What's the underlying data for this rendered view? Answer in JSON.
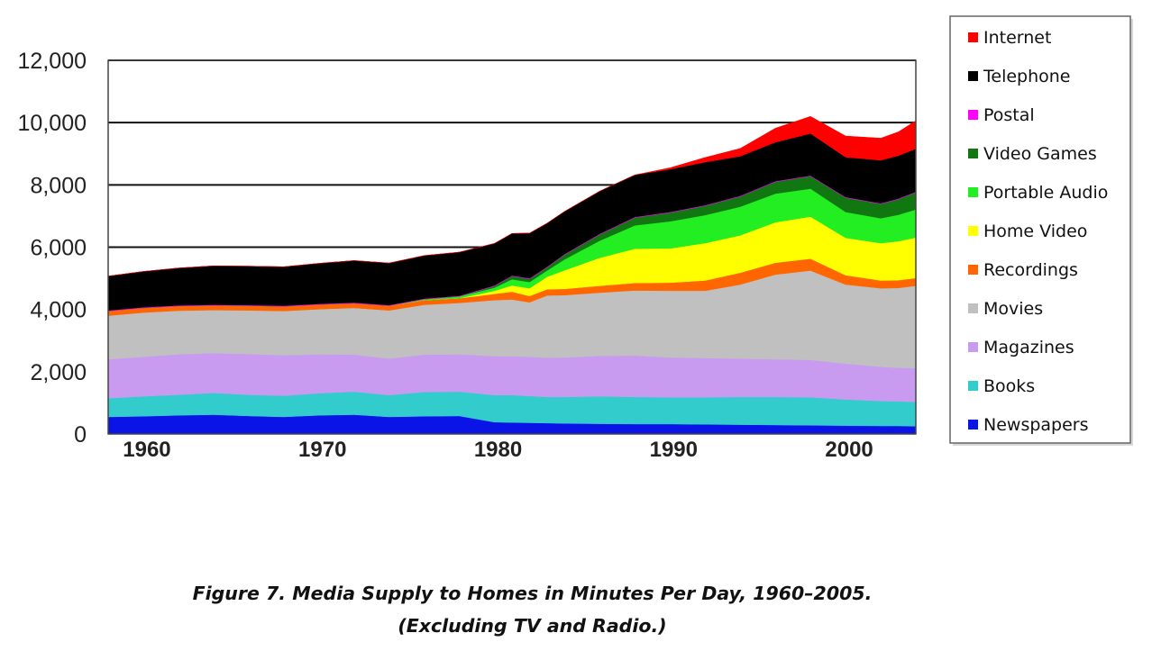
{
  "chart_data": {
    "type": "area",
    "stacked": true,
    "x": [
      1958,
      1960,
      1962,
      1964,
      1966,
      1968,
      1970,
      1972,
      1974,
      1976,
      1978,
      1980,
      1981,
      1982,
      1983,
      1984,
      1986,
      1988,
      1990,
      1992,
      1994,
      1996,
      1998,
      2000,
      2002,
      2003,
      2004
    ],
    "ylim": [
      0,
      12000
    ],
    "xlim": [
      1958,
      2004
    ],
    "yticks": [
      0,
      2000,
      4000,
      6000,
      8000,
      10000,
      12000
    ],
    "ytick_labels": [
      "0",
      "2,000",
      "4,000",
      "6,000",
      "8,000",
      "10,000",
      "12,000"
    ],
    "xticks": [
      1960,
      1970,
      1980,
      1990,
      2000
    ],
    "xtick_labels": [
      "1960",
      "1970",
      "1980",
      "1990",
      "2000"
    ],
    "grid": "horizontal",
    "legend_position": "right",
    "series": [
      {
        "name": "Newspapers",
        "color": "#0a14e6",
        "values": [
          550,
          570,
          600,
          620,
          580,
          550,
          600,
          620,
          550,
          570,
          580,
          380,
          370,
          360,
          350,
          340,
          330,
          320,
          320,
          310,
          300,
          290,
          280,
          270,
          260,
          260,
          250
        ]
      },
      {
        "name": "Books",
        "color": "#33cccc",
        "values": [
          600,
          640,
          660,
          700,
          680,
          680,
          710,
          740,
          700,
          780,
          780,
          870,
          880,
          860,
          840,
          850,
          880,
          870,
          860,
          870,
          890,
          900,
          900,
          840,
          800,
          790,
          780
        ]
      },
      {
        "name": "Magazines",
        "color": "#c89bf0",
        "values": [
          1250,
          1270,
          1300,
          1280,
          1310,
          1300,
          1250,
          1190,
          1170,
          1200,
          1200,
          1250,
          1250,
          1260,
          1260,
          1270,
          1300,
          1330,
          1280,
          1260,
          1230,
          1210,
          1200,
          1150,
          1100,
          1080,
          1080
        ]
      },
      {
        "name": "Movies",
        "color": "#c0c0c0",
        "values": [
          1400,
          1420,
          1400,
          1380,
          1400,
          1420,
          1450,
          1500,
          1550,
          1600,
          1650,
          1800,
          1820,
          1750,
          2000,
          2000,
          2030,
          2090,
          2140,
          2160,
          2380,
          2720,
          2870,
          2540,
          2520,
          2560,
          2650
        ]
      },
      {
        "name": "Recordings",
        "color": "#ff6600",
        "values": [
          150,
          150,
          150,
          150,
          150,
          150,
          150,
          150,
          150,
          150,
          150,
          200,
          250,
          200,
          200,
          200,
          220,
          240,
          260,
          330,
          380,
          380,
          380,
          300,
          250,
          250,
          250
        ]
      },
      {
        "name": "Home Video",
        "color": "#ffff00",
        "values": [
          0,
          0,
          0,
          0,
          0,
          0,
          0,
          0,
          0,
          0,
          0,
          100,
          200,
          250,
          400,
          600,
          900,
          1100,
          1100,
          1200,
          1200,
          1300,
          1350,
          1200,
          1200,
          1250,
          1300
        ]
      },
      {
        "name": "Portable Audio",
        "color": "#22ee22",
        "values": [
          0,
          0,
          0,
          0,
          0,
          0,
          0,
          0,
          0,
          30,
          60,
          100,
          200,
          200,
          200,
          350,
          550,
          750,
          870,
          900,
          920,
          920,
          900,
          830,
          800,
          850,
          900
        ]
      },
      {
        "name": "Video Games",
        "color": "#117711",
        "values": [
          0,
          0,
          0,
          0,
          0,
          0,
          0,
          0,
          0,
          0,
          0,
          50,
          100,
          100,
          100,
          150,
          200,
          250,
          280,
          300,
          330,
          380,
          400,
          460,
          460,
          500,
          550
        ]
      },
      {
        "name": "Postal",
        "color": "#ff00ff",
        "values": [
          20,
          20,
          20,
          20,
          20,
          20,
          20,
          20,
          20,
          20,
          20,
          20,
          20,
          20,
          20,
          20,
          20,
          20,
          20,
          20,
          20,
          20,
          20,
          20,
          20,
          20,
          20
        ]
      },
      {
        "name": "Telephone",
        "color": "#000000",
        "values": [
          1100,
          1150,
          1200,
          1250,
          1250,
          1250,
          1300,
          1350,
          1350,
          1380,
          1400,
          1350,
          1350,
          1450,
          1400,
          1370,
          1370,
          1350,
          1370,
          1380,
          1270,
          1250,
          1350,
          1280,
          1380,
          1380,
          1380
        ]
      },
      {
        "name": "Internet",
        "color": "#ff0000",
        "values": [
          0,
          0,
          0,
          0,
          0,
          0,
          0,
          0,
          0,
          0,
          0,
          0,
          0,
          0,
          0,
          0,
          0,
          0,
          50,
          150,
          250,
          450,
          550,
          680,
          710,
          760,
          900
        ]
      }
    ],
    "legend_order": [
      "Internet",
      "Telephone",
      "Postal",
      "Video Games",
      "Portable Audio",
      "Home Video",
      "Recordings",
      "Movies",
      "Magazines",
      "Books",
      "Newspapers"
    ]
  },
  "caption": {
    "line1": "Figure 7. Media Supply to Homes in Minutes Per Day, 1960–2005.",
    "line2": "(Excluding TV and Radio.)"
  }
}
